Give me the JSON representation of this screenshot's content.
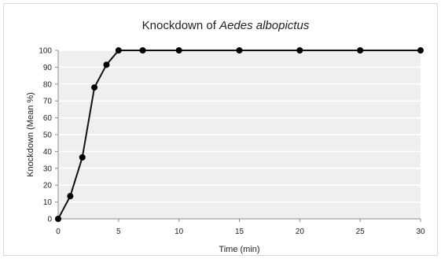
{
  "chart_data": {
    "type": "line",
    "title": {
      "prefix": "Knockdown of ",
      "species": "Aedes albopictus"
    },
    "xlabel": "Time (min)",
    "ylabel": "Knockdown (Mean %)",
    "xlim": [
      0,
      30
    ],
    "ylim": [
      0,
      100
    ],
    "xticks": [
      0,
      5,
      10,
      15,
      20,
      25,
      30
    ],
    "yticks": [
      0,
      10,
      20,
      30,
      40,
      50,
      60,
      70,
      80,
      90,
      100
    ],
    "grid": true,
    "legend": "none",
    "colors": {
      "plot_bg": "#efefef",
      "grid": "#ffffff",
      "line": "#111111",
      "marker": "#000000"
    },
    "series": [
      {
        "x": [
          0,
          1,
          2,
          3,
          4,
          5,
          7,
          10,
          15,
          20,
          25,
          30
        ],
        "y": [
          0,
          13.5,
          36.5,
          78,
          91.5,
          100,
          100,
          100,
          100,
          100,
          100,
          100
        ]
      }
    ]
  }
}
